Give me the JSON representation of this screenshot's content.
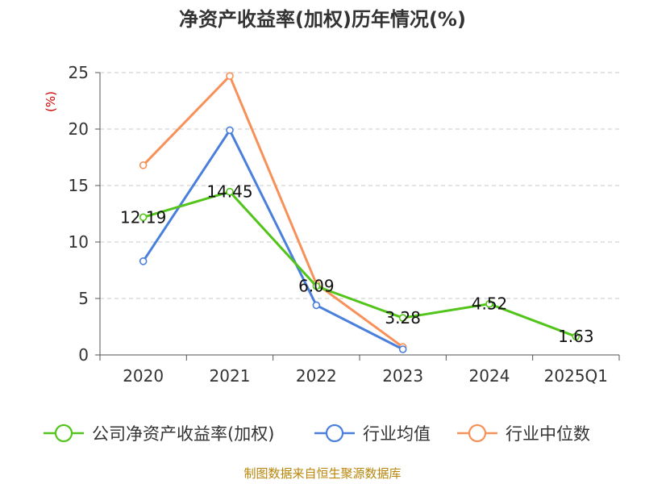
{
  "chart_data": {
    "type": "line",
    "title": "净资产收益率(加权)历年情况(%)",
    "unit": "(%)",
    "categories": [
      "2020",
      "2021",
      "2022",
      "2023",
      "2024",
      "2025Q1"
    ],
    "ylim": [
      0,
      25
    ],
    "yticks": [
      0,
      5,
      10,
      15,
      20,
      25
    ],
    "grid": true,
    "legend_position": "bottom",
    "series": [
      {
        "name": "公司净资产收益率(加权)",
        "color": "#52c41a",
        "values": [
          12.19,
          14.45,
          6.09,
          3.28,
          4.52,
          1.63
        ],
        "labels": [
          "12.19",
          "14.45",
          "6.09",
          "3.28",
          "4.52",
          "1.63"
        ]
      },
      {
        "name": "行业均值",
        "color": "#4a7fdc",
        "values": [
          8.3,
          19.9,
          4.4,
          0.5,
          null,
          null
        ]
      },
      {
        "name": "行业中位数",
        "color": "#f79159",
        "values": [
          16.8,
          24.7,
          6.3,
          0.7,
          null,
          null
        ]
      }
    ]
  },
  "footer": {
    "source": "制图数据来自恒生聚源数据库"
  }
}
